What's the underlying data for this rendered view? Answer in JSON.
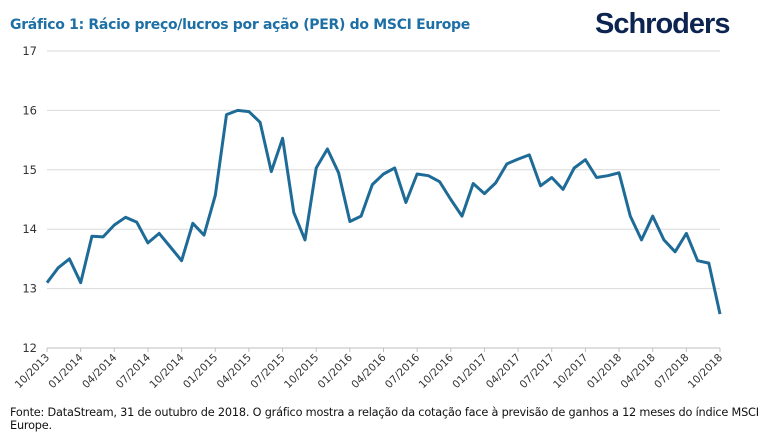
{
  "header": {
    "title": "Gráfico 1: Rácio preço/lucros por ação (PER) do MSCI Europe",
    "logo": "Schroders"
  },
  "footer": {
    "source": "Fonte: DataStream, 31 de outubro de 2018. O gráfico mostra a relação da cotação face à previsão de ganhos a 12 meses do índice MSCI Europe."
  },
  "colors": {
    "line": "#1f6b98",
    "title": "#1d6fa5",
    "logo": "#0d2451",
    "grid": "#d9d9d9"
  },
  "chart_data": {
    "type": "line",
    "title": "Gráfico 1: Rácio preço/lucros por ação (PER) do MSCI Europe",
    "xlabel": "",
    "ylabel": "",
    "ylim": [
      12,
      17
    ],
    "yticks": [
      "12",
      "13",
      "14",
      "15",
      "16",
      "17"
    ],
    "xticks": [
      "10/2013",
      "01/2014",
      "04/2014",
      "07/2014",
      "10/2014",
      "01/2015",
      "04/2015",
      "07/2015",
      "10/2015",
      "01/2016",
      "04/2016",
      "07/2016",
      "10/2016",
      "01/2017",
      "04/2017",
      "07/2017",
      "10/2017",
      "01/2018",
      "04/2018",
      "07/2018",
      "10/2018"
    ],
    "grid": true,
    "x_start": "10/2013",
    "x_end": "10/2018",
    "frequency": "monthly",
    "values": [
      13.1,
      13.35,
      13.5,
      13.1,
      13.88,
      13.87,
      14.07,
      14.2,
      14.12,
      13.77,
      13.93,
      13.7,
      13.47,
      14.1,
      13.9,
      14.57,
      15.93,
      16.0,
      15.98,
      15.8,
      14.97,
      15.53,
      14.28,
      13.82,
      15.03,
      15.35,
      14.95,
      14.13,
      14.22,
      14.75,
      14.93,
      15.03,
      14.45,
      14.93,
      14.9,
      14.8,
      14.5,
      14.22,
      14.77,
      14.6,
      14.78,
      15.1,
      15.18,
      15.25,
      14.73,
      14.87,
      14.67,
      15.03,
      15.17,
      14.87,
      14.9,
      14.95,
      14.22,
      13.82,
      14.22,
      13.82,
      13.62,
      13.93,
      13.47,
      13.43,
      12.57
    ]
  }
}
